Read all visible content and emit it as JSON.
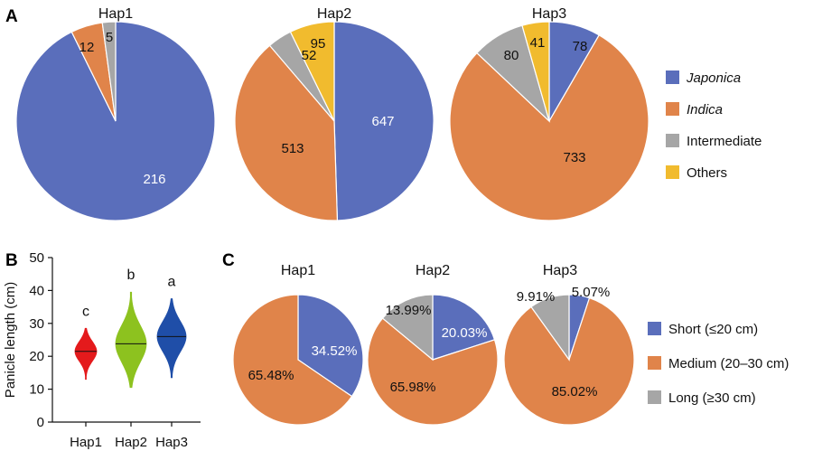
{
  "colors": {
    "japonica": "#5A6EBB",
    "indica": "#E0844A",
    "intermediate": "#A6A6A6",
    "others": "#F1BB2E",
    "short": "#5A6EBB",
    "medium": "#E0844A",
    "long": "#A6A6A6",
    "violin_hap1": "#E41A1C",
    "violin_hap2": "#8DC21F",
    "violin_hap3": "#1F4EA8"
  },
  "panel_labels": {
    "a": "A",
    "b": "B",
    "c": "C"
  },
  "chart_data": [
    {
      "id": "A",
      "type": "pie",
      "categories": [
        "Japonica",
        "Indica",
        "Intermediate",
        "Others"
      ],
      "legend_position": "right",
      "pies": [
        {
          "title": "Hap1",
          "values": [
            216,
            12,
            5,
            0
          ],
          "labels": [
            "216",
            "12",
            "5",
            ""
          ]
        },
        {
          "title": "Hap2",
          "values": [
            647,
            513,
            52,
            95
          ],
          "labels": [
            "647",
            "513",
            "52",
            "95"
          ]
        },
        {
          "title": "Hap3",
          "values": [
            78,
            733,
            80,
            41
          ],
          "labels": [
            "78",
            "733",
            "80",
            "41"
          ]
        }
      ]
    },
    {
      "id": "B",
      "type": "violin",
      "categories": [
        "Hap1",
        "Hap2",
        "Hap3"
      ],
      "ylabel": "Panicle length (cm)",
      "ylim": [
        0,
        50
      ],
      "yticks": [
        0,
        10,
        20,
        30,
        40,
        50
      ],
      "medians": [
        21.5,
        23.8,
        26.0
      ],
      "ranges": [
        [
          13,
          28.5
        ],
        [
          10.5,
          39.5
        ],
        [
          13.5,
          37.5
        ]
      ],
      "significance": [
        "c",
        "b",
        "a"
      ]
    },
    {
      "id": "C",
      "type": "pie",
      "categories": [
        "Short (≤20 cm)",
        "Medium (20–30 cm)",
        "Long (≥30 cm)"
      ],
      "legend_position": "right",
      "pies": [
        {
          "title": "Hap1",
          "values": [
            34.52,
            65.48,
            0
          ],
          "labels": [
            "34.52%",
            "65.48%",
            ""
          ]
        },
        {
          "title": "Hap2",
          "values": [
            20.03,
            65.98,
            13.99
          ],
          "labels": [
            "20.03%",
            "65.98%",
            "13.99%"
          ]
        },
        {
          "title": "Hap3",
          "values": [
            5.07,
            85.02,
            9.91
          ],
          "labels": [
            "5.07%",
            "85.02%",
            "9.91%"
          ]
        }
      ]
    }
  ]
}
